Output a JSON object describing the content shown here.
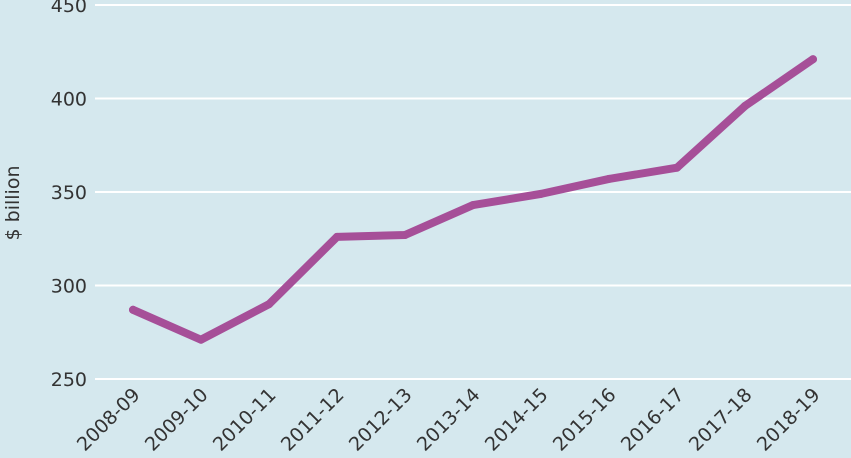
{
  "chart_data": {
    "type": "line",
    "title": "",
    "xlabel": "",
    "ylabel": "$ billion",
    "categories": [
      "2008-09",
      "2009-10",
      "2010-11",
      "2011-12",
      "2012-13",
      "2013-14",
      "2014-15",
      "2015-16",
      "2016-17",
      "2017-18",
      "2018-19"
    ],
    "series": [
      {
        "values": [
          287,
          271,
          290,
          326,
          327,
          343,
          349,
          357,
          363,
          396,
          421
        ],
        "color": "#a64f98"
      }
    ],
    "ylim": [
      250,
      450
    ],
    "yticks": [
      250,
      300,
      350,
      400,
      450
    ],
    "grid": true,
    "legend": "none"
  },
  "colors": {
    "background": "#d5e8ee",
    "gridline": "#ffffff",
    "line": "#a64f98",
    "text": "#333333"
  }
}
